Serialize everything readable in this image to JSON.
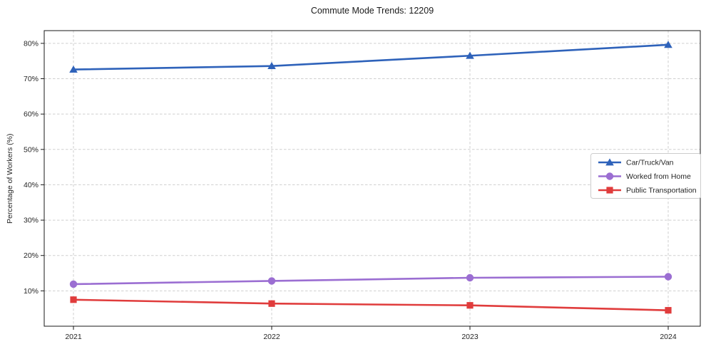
{
  "chart_data": {
    "type": "line",
    "title": "Commute Mode Trends: 12209",
    "xlabel": "",
    "ylabel": "Percentage of Workers (%)",
    "categories": [
      "2021",
      "2022",
      "2023",
      "2024"
    ],
    "series": [
      {
        "name": "Car/Truck/Van",
        "values": [
          72.6,
          73.6,
          76.5,
          79.6
        ],
        "color": "#2e62ba",
        "marker": "triangle"
      },
      {
        "name": "Worked from Home",
        "values": [
          11.9,
          12.8,
          13.7,
          14.0
        ],
        "color": "#9b6ed2",
        "marker": "circle"
      },
      {
        "name": "Public Transportation",
        "values": [
          7.5,
          6.4,
          5.9,
          4.5
        ],
        "color": "#e03c3c",
        "marker": "square"
      }
    ],
    "y_ticks": [
      10,
      20,
      30,
      40,
      50,
      60,
      70,
      80
    ],
    "y_tick_suffix": "%",
    "ylim": [
      0,
      83.6
    ],
    "grid": true,
    "grid_color": "#cfcfcf",
    "axis_color": "#1a1a1a",
    "legend_position": "right-center"
  }
}
